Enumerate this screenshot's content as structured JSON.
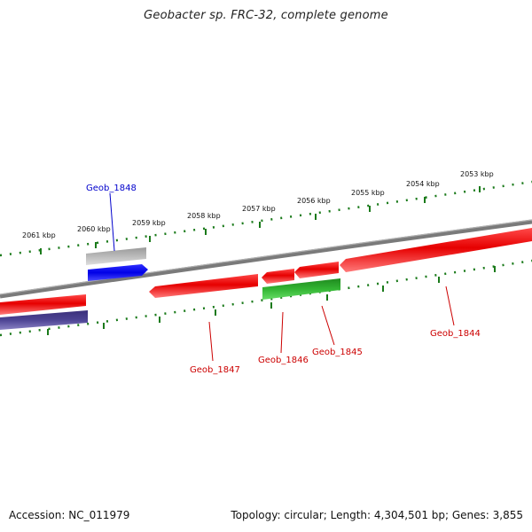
{
  "title": "Geobacter sp. FRC-32, complete genome",
  "footer": {
    "accession": "Accession: NC_011979",
    "summary": "Topology: circular; Length: 4,304,501 bp; Genes: 3,855"
  },
  "ruler": {
    "labels": [
      "2053 kbp",
      "2054 kbp",
      "2055 kbp",
      "2056 kbp",
      "2057 kbp",
      "2058 kbp",
      "2059 kbp",
      "2060 kbp",
      "2061 kbp"
    ]
  },
  "genes": [
    {
      "name": "Geob_1848",
      "color": "#0000cc"
    },
    {
      "name": "Geob_1847",
      "color": "#cc0000"
    },
    {
      "name": "Geob_1846",
      "color": "#cc0000"
    },
    {
      "name": "Geob_1845",
      "color": "#cc0000"
    },
    {
      "name": "Geob_1844",
      "color": "#cc0000"
    }
  ],
  "colors": {
    "forward_feature": "#ee0000",
    "reverse_feature": "#ee0000",
    "cds_blue": "#0000ee",
    "cds_green": "#22aa22",
    "cds_grey": "#aaaaaa",
    "cds_purple": "#4a3f8a",
    "ruler_dots": "#1a7a1a",
    "backbone": "#808080"
  }
}
